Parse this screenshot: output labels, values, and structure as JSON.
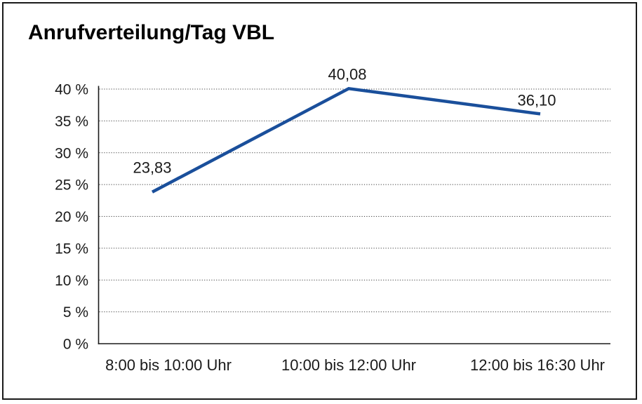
{
  "page": {
    "background": "#ffffff",
    "frame_border_color": "#1a1a1a"
  },
  "chart_data": {
    "type": "line",
    "title": "Anrufverteilung/Tag VBL",
    "categories": [
      "8:00 bis 10:00 Uhr",
      "10:00 bis 12:00 Uhr",
      "12:00 bis 16:30 Uhr"
    ],
    "values": [
      23.83,
      40.08,
      36.1
    ],
    "data_labels": [
      "23,83",
      "40,08",
      "36,10"
    ],
    "xlabel": "",
    "ylabel": "",
    "ylim": [
      0,
      40
    ],
    "y_tick_step": 5,
    "y_tick_labels": [
      "0 %",
      "5 %",
      "10 %",
      "15 %",
      "20 %",
      "25 %",
      "30 %",
      "35 %",
      "40 %"
    ],
    "legend": "none",
    "grid": {
      "horizontal": true,
      "style": "dotted",
      "color": "#3f3f3f"
    },
    "line_color": "#1a4f9b",
    "axis_color": "#1a1a1a",
    "label_color": "#1a1a1a"
  }
}
